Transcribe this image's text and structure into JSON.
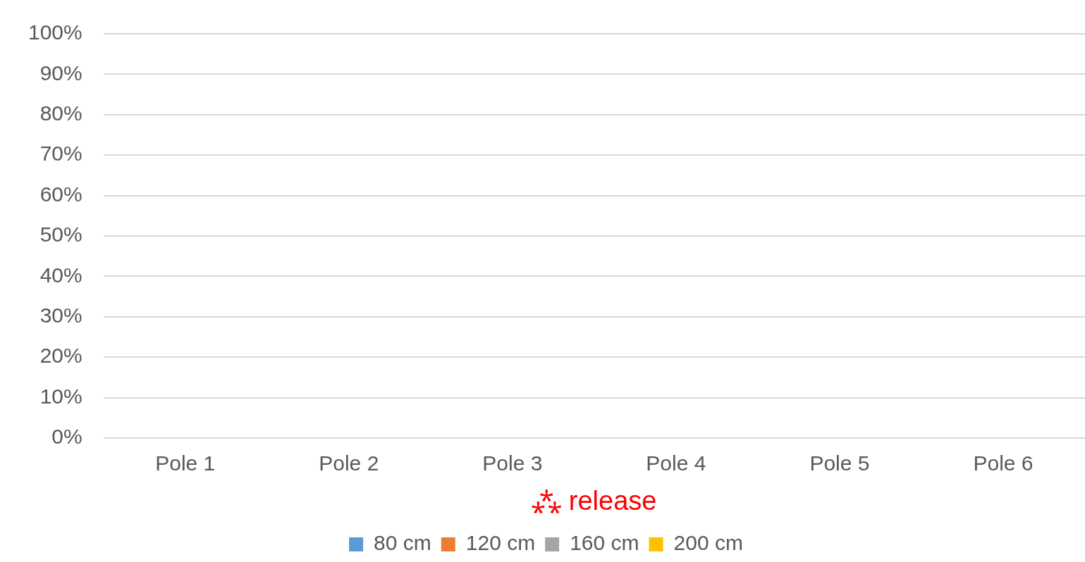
{
  "chart_data": {
    "type": "bar",
    "categories": [
      "Pole 1",
      "Pole 2",
      "Pole 3",
      "Pole 4",
      "Pole 5",
      "Pole 6"
    ],
    "series": [
      {
        "name": "80 cm",
        "color": "#5b9bd5",
        "values": [
          0,
          0,
          0,
          0,
          0,
          0
        ]
      },
      {
        "name": "120 cm",
        "color": "#ed7d31",
        "values": [
          0,
          0,
          0,
          0,
          0,
          0
        ]
      },
      {
        "name": "160 cm",
        "color": "#a5a5a5",
        "values": [
          0,
          0,
          0,
          0,
          0,
          0
        ]
      },
      {
        "name": "200 cm",
        "color": "#ffc000",
        "values": [
          0,
          0,
          0,
          0,
          0,
          0
        ]
      }
    ],
    "ylim": [
      0,
      1
    ],
    "yticks": [
      {
        "value": 0,
        "label": "0%"
      },
      {
        "value": 0.1,
        "label": "10%"
      },
      {
        "value": 0.2,
        "label": "20%"
      },
      {
        "value": 0.3,
        "label": "30%"
      },
      {
        "value": 0.4,
        "label": "40%"
      },
      {
        "value": 0.5,
        "label": "50%"
      },
      {
        "value": 0.6,
        "label": "60%"
      },
      {
        "value": 0.7,
        "label": "70%"
      },
      {
        "value": 0.8,
        "label": "80%"
      },
      {
        "value": 0.9,
        "label": "90%"
      },
      {
        "value": 1,
        "label": "100%"
      }
    ],
    "grid": "y",
    "legend": "bottom",
    "annotations": [
      "⁂ release"
    ]
  }
}
